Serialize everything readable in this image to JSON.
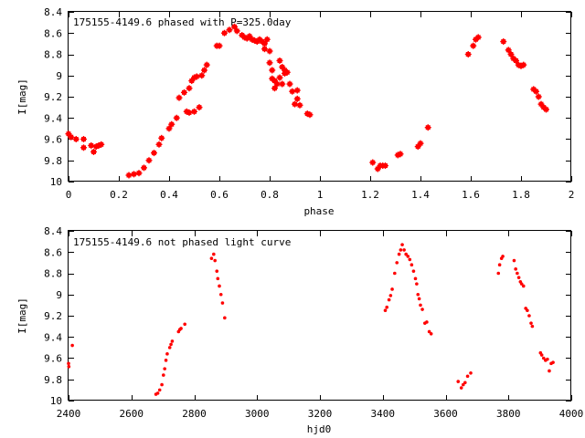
{
  "chart_data": [
    {
      "type": "scatter",
      "title": "175155-4149.6 phased with P=325.0day",
      "xlabel": "phase",
      "ylabel": "I[mag]",
      "xlim": [
        0,
        2
      ],
      "ylim": [
        10,
        8.4
      ],
      "y_inverted": true,
      "grid": false,
      "xticks": [
        0,
        0.2,
        0.4,
        0.6,
        0.8,
        1,
        1.2,
        1.4,
        1.6,
        1.8,
        2
      ],
      "xtick_labels": [
        "0",
        "0.2",
        "0.4",
        "0.6",
        "0.8",
        "1",
        "1.2",
        "1.4",
        "1.6",
        "1.8",
        "2"
      ],
      "yticks": [
        8.4,
        8.6,
        8.8,
        9,
        9.2,
        9.4,
        9.6,
        9.8,
        10
      ],
      "ytick_labels": [
        "8.4",
        "8.6",
        "8.8",
        "9",
        "9.2",
        "9.4",
        "9.6",
        "9.8",
        "10"
      ],
      "marker_color": "#ff0000",
      "series": [
        {
          "points": [
            [
              0.0,
              9.55
            ],
            [
              0.01,
              9.58
            ],
            [
              0.03,
              9.6
            ],
            [
              0.06,
              9.6
            ],
            [
              0.06,
              9.68
            ],
            [
              0.09,
              9.66
            ],
            [
              0.1,
              9.72
            ],
            [
              0.11,
              9.67
            ],
            [
              0.12,
              9.66
            ],
            [
              0.13,
              9.65
            ],
            [
              0.24,
              9.94
            ],
            [
              0.26,
              9.93
            ],
            [
              0.28,
              9.92
            ],
            [
              0.3,
              9.87
            ],
            [
              0.32,
              9.8
            ],
            [
              0.34,
              9.73
            ],
            [
              0.36,
              9.65
            ],
            [
              0.37,
              9.59
            ],
            [
              0.4,
              9.5
            ],
            [
              0.41,
              9.46
            ],
            [
              0.43,
              9.4
            ],
            [
              0.44,
              9.21
            ],
            [
              0.46,
              9.16
            ],
            [
              0.47,
              9.34
            ],
            [
              0.48,
              9.12
            ],
            [
              0.48,
              9.35
            ],
            [
              0.49,
              9.05
            ],
            [
              0.5,
              9.34
            ],
            [
              0.5,
              9.02
            ],
            [
              0.51,
              9.01
            ],
            [
              0.52,
              9.3
            ],
            [
              0.53,
              9.0
            ],
            [
              0.54,
              8.95
            ],
            [
              0.55,
              8.9
            ],
            [
              0.59,
              8.72
            ],
            [
              0.6,
              8.72
            ],
            [
              0.62,
              8.6
            ],
            [
              0.64,
              8.57
            ],
            [
              0.66,
              8.54
            ],
            [
              0.67,
              8.58
            ],
            [
              0.69,
              8.62
            ],
            [
              0.7,
              8.64
            ],
            [
              0.71,
              8.65
            ],
            [
              0.72,
              8.63
            ],
            [
              0.73,
              8.66
            ],
            [
              0.74,
              8.67
            ],
            [
              0.75,
              8.68
            ],
            [
              0.76,
              8.66
            ],
            [
              0.77,
              8.68
            ],
            [
              0.78,
              8.7
            ],
            [
              0.78,
              8.75
            ],
            [
              0.79,
              8.66
            ],
            [
              0.8,
              8.77
            ],
            [
              0.8,
              8.88
            ],
            [
              0.81,
              8.95
            ],
            [
              0.81,
              9.03
            ],
            [
              0.82,
              9.05
            ],
            [
              0.82,
              9.12
            ],
            [
              0.83,
              9.08
            ],
            [
              0.84,
              9.02
            ],
            [
              0.84,
              8.86
            ],
            [
              0.85,
              8.92
            ],
            [
              0.85,
              9.08
            ],
            [
              0.86,
              8.98
            ],
            [
              0.86,
              8.95
            ],
            [
              0.87,
              8.97
            ],
            [
              0.88,
              9.08
            ],
            [
              0.89,
              9.15
            ],
            [
              0.9,
              9.27
            ],
            [
              0.91,
              9.14
            ],
            [
              0.91,
              9.22
            ],
            [
              0.92,
              9.28
            ],
            [
              0.95,
              9.36
            ],
            [
              0.96,
              9.37
            ],
            [
              1.21,
              9.82
            ],
            [
              1.23,
              9.88
            ],
            [
              1.24,
              9.85
            ],
            [
              1.25,
              9.85
            ],
            [
              1.26,
              9.85
            ],
            [
              1.31,
              9.75
            ],
            [
              1.32,
              9.74
            ],
            [
              1.39,
              9.67
            ],
            [
              1.4,
              9.64
            ],
            [
              1.43,
              9.49
            ],
            [
              1.59,
              8.8
            ],
            [
              1.61,
              8.72
            ],
            [
              1.62,
              8.66
            ],
            [
              1.63,
              8.64
            ],
            [
              1.73,
              8.68
            ],
            [
              1.75,
              8.76
            ],
            [
              1.76,
              8.8
            ],
            [
              1.77,
              8.84
            ],
            [
              1.78,
              8.86
            ],
            [
              1.79,
              8.9
            ],
            [
              1.8,
              8.91
            ],
            [
              1.81,
              8.9
            ],
            [
              1.85,
              9.13
            ],
            [
              1.86,
              9.15
            ],
            [
              1.87,
              9.2
            ],
            [
              1.88,
              9.27
            ],
            [
              1.89,
              9.3
            ],
            [
              1.9,
              9.32
            ]
          ]
        }
      ]
    },
    {
      "type": "scatter",
      "title": "175155-4149.6 not phased light curve",
      "xlabel": "hjd0",
      "ylabel": "I[mag]",
      "xlim": [
        2400,
        4000
      ],
      "ylim": [
        10,
        8.4
      ],
      "y_inverted": true,
      "grid": false,
      "xticks": [
        2400,
        2600,
        2800,
        3000,
        3200,
        3400,
        3600,
        3800,
        4000
      ],
      "xtick_labels": [
        "2400",
        "2600",
        "2800",
        "3000",
        "3200",
        "3400",
        "3600",
        "3800",
        "4000"
      ],
      "yticks": [
        8.4,
        8.6,
        8.8,
        9,
        9.2,
        9.4,
        9.6,
        9.8,
        10
      ],
      "ytick_labels": [
        "8.4",
        "8.6",
        "8.8",
        "9",
        "9.2",
        "9.4",
        "9.6",
        "9.8",
        "10"
      ],
      "marker_color": "#ff0000",
      "series": [
        {
          "points": [
            [
              2400,
              9.65
            ],
            [
              2401,
              9.68
            ],
            [
              2412,
              9.48
            ],
            [
              2678,
              9.94
            ],
            [
              2684,
              9.93
            ],
            [
              2690,
              9.9
            ],
            [
              2697,
              9.85
            ],
            [
              2702,
              9.76
            ],
            [
              2706,
              9.7
            ],
            [
              2710,
              9.62
            ],
            [
              2714,
              9.56
            ],
            [
              2722,
              9.5
            ],
            [
              2726,
              9.47
            ],
            [
              2730,
              9.44
            ],
            [
              2750,
              9.35
            ],
            [
              2754,
              9.33
            ],
            [
              2758,
              9.32
            ],
            [
              2770,
              9.28
            ],
            [
              2855,
              8.66
            ],
            [
              2862,
              8.62
            ],
            [
              2866,
              8.68
            ],
            [
              2872,
              8.78
            ],
            [
              2875,
              8.85
            ],
            [
              2880,
              8.92
            ],
            [
              2885,
              9.0
            ],
            [
              2890,
              9.08
            ],
            [
              2897,
              9.22
            ],
            [
              3408,
              9.15
            ],
            [
              3413,
              9.12
            ],
            [
              3420,
              9.05
            ],
            [
              3425,
              9.01
            ],
            [
              3430,
              8.95
            ],
            [
              3438,
              8.8
            ],
            [
              3445,
              8.7
            ],
            [
              3452,
              8.62
            ],
            [
              3457,
              8.58
            ],
            [
              3462,
              8.53
            ],
            [
              3468,
              8.58
            ],
            [
              3474,
              8.62
            ],
            [
              3480,
              8.64
            ],
            [
              3486,
              8.67
            ],
            [
              3492,
              8.72
            ],
            [
              3498,
              8.78
            ],
            [
              3504,
              8.85
            ],
            [
              3508,
              8.9
            ],
            [
              3512,
              9.0
            ],
            [
              3516,
              9.04
            ],
            [
              3520,
              9.1
            ],
            [
              3526,
              9.14
            ],
            [
              3534,
              9.27
            ],
            [
              3540,
              9.26
            ],
            [
              3548,
              9.35
            ],
            [
              3554,
              9.37
            ],
            [
              3640,
              9.82
            ],
            [
              3650,
              9.88
            ],
            [
              3656,
              9.85
            ],
            [
              3662,
              9.83
            ],
            [
              3670,
              9.77
            ],
            [
              3680,
              9.74
            ],
            [
              3768,
              8.8
            ],
            [
              3772,
              8.72
            ],
            [
              3778,
              8.66
            ],
            [
              3782,
              8.64
            ],
            [
              3818,
              8.68
            ],
            [
              3823,
              8.76
            ],
            [
              3828,
              8.8
            ],
            [
              3833,
              8.84
            ],
            [
              3838,
              8.88
            ],
            [
              3842,
              8.9
            ],
            [
              3848,
              8.92
            ],
            [
              3855,
              9.13
            ],
            [
              3860,
              9.15
            ],
            [
              3866,
              9.2
            ],
            [
              3872,
              9.27
            ],
            [
              3876,
              9.3
            ],
            [
              3902,
              9.55
            ],
            [
              3906,
              9.57
            ],
            [
              3912,
              9.6
            ],
            [
              3918,
              9.62
            ],
            [
              3924,
              9.61
            ],
            [
              3930,
              9.72
            ],
            [
              3936,
              9.65
            ],
            [
              3942,
              9.64
            ]
          ]
        }
      ]
    }
  ]
}
